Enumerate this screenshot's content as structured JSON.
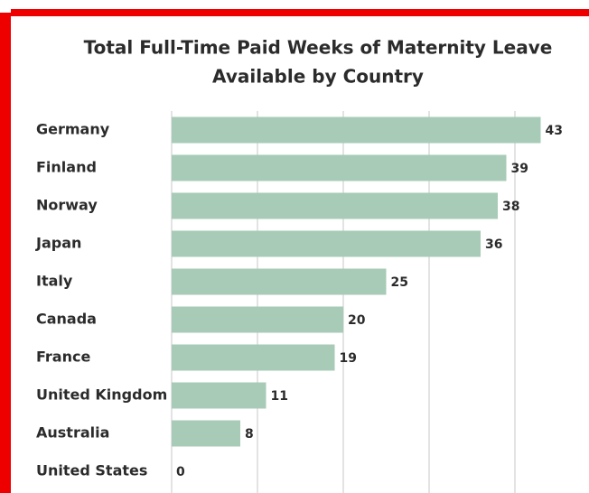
{
  "chart_data": {
    "type": "bar",
    "orientation": "horizontal",
    "title": [
      "Total Full-Time Paid Weeks of Maternity Leave",
      "Available by Country"
    ],
    "categories": [
      "Germany",
      "Finland",
      "Norway",
      "Japan",
      "Italy",
      "Canada",
      "France",
      "United Kingdom",
      "Australia",
      "United States"
    ],
    "values": [
      43,
      39,
      38,
      36,
      25,
      20,
      19,
      11,
      8,
      0
    ],
    "color": "#a7cbb7",
    "xlim": [
      0,
      48
    ],
    "xticks": [
      0,
      10,
      20,
      30,
      40
    ],
    "grid": true
  }
}
